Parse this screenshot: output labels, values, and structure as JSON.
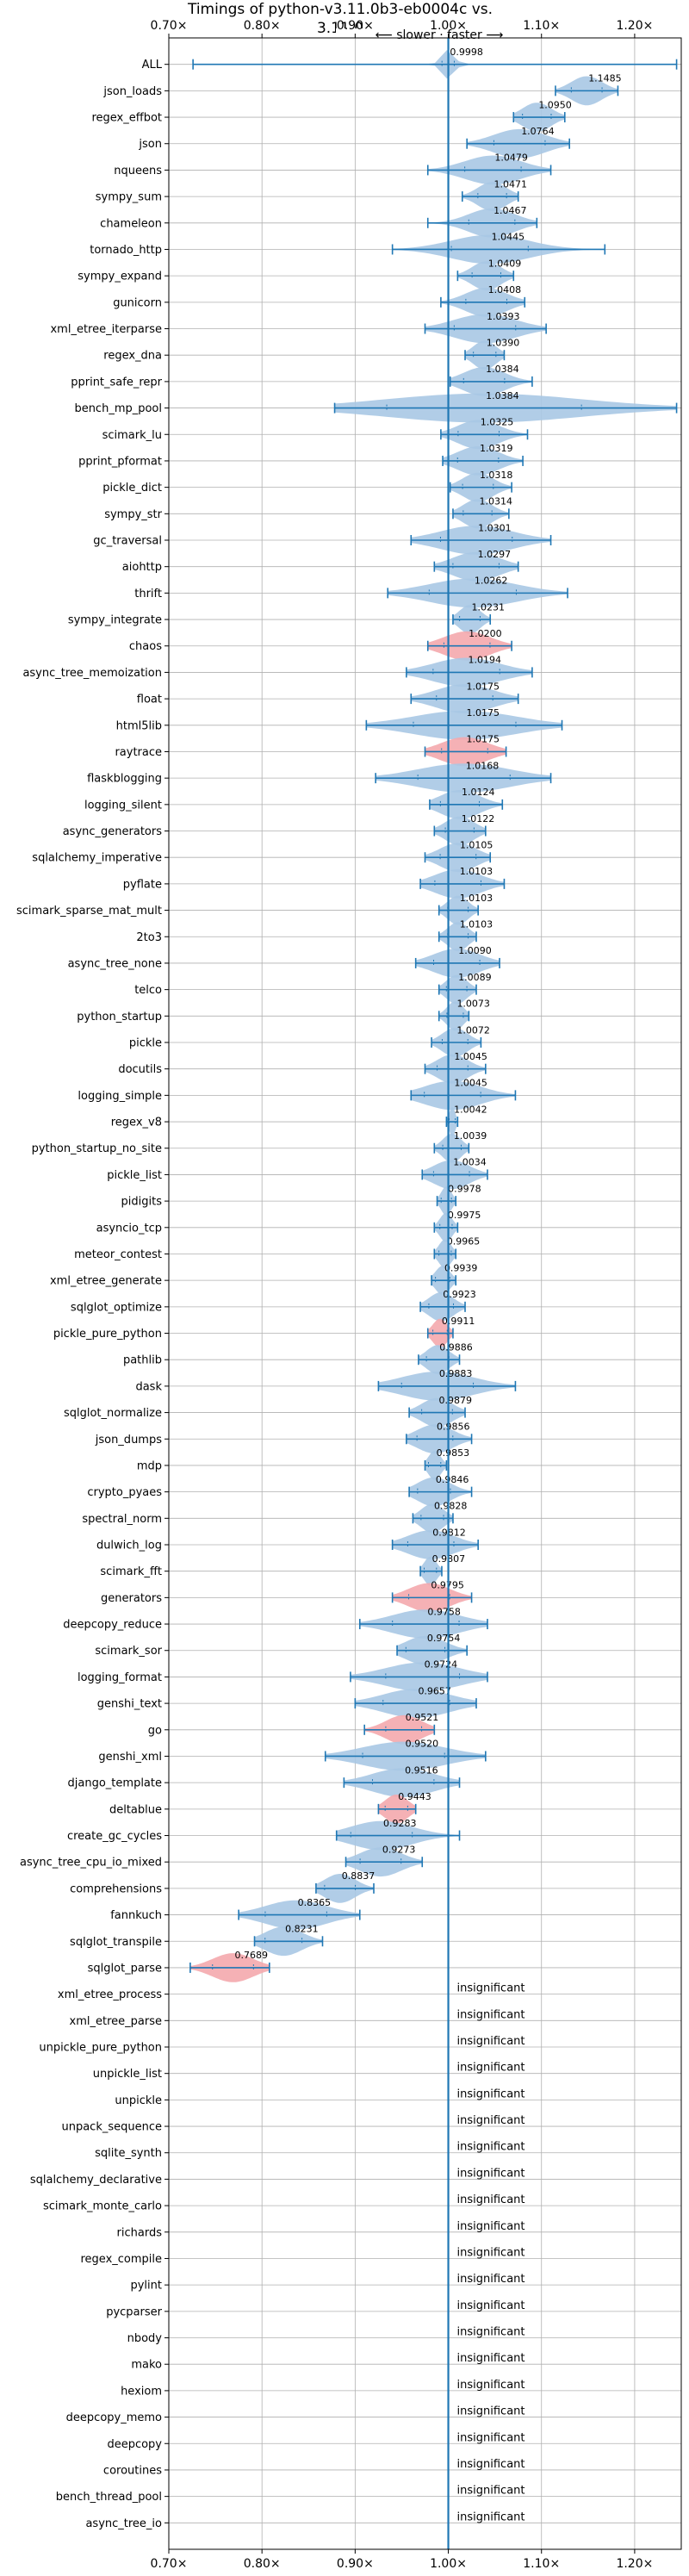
{
  "chart_data": {
    "type": "violin",
    "title": "Timings of python-v3.11.0b3-eb0004c vs. 3.11.0",
    "subtitle": "⟵ slower · faster ⟶",
    "xlim": [
      0.7,
      1.25
    ],
    "xticks": [
      0.7,
      0.8,
      0.9,
      1.0,
      1.1,
      1.2
    ],
    "xtick_labels": [
      "0.70×",
      "0.80×",
      "0.90×",
      "1.00×",
      "1.10×",
      "1.20×"
    ],
    "reference_line": 1.0,
    "grid": true,
    "colors": {
      "faster": "#a8c8e4",
      "slower": "#f4a9ad",
      "line": "#1f77b4"
    },
    "insignificant_label": "insignificant",
    "benchmarks": [
      {
        "name": "ALL",
        "value": 0.9998,
        "label": "0.9998",
        "min": 0.726,
        "max": 1.245,
        "spread": 0.012,
        "slower": false
      },
      {
        "name": "json_loads",
        "value": 1.1485,
        "label": "1.1485",
        "min": 1.115,
        "max": 1.182,
        "spread": 0.03,
        "slower": false
      },
      {
        "name": "regex_effbot",
        "value": 1.095,
        "label": "1.0950",
        "min": 1.07,
        "max": 1.125,
        "spread": 0.028,
        "slower": false
      },
      {
        "name": "json",
        "value": 1.0764,
        "label": "1.0764",
        "min": 1.02,
        "max": 1.13,
        "spread": 0.05,
        "slower": false
      },
      {
        "name": "nqueens",
        "value": 1.0479,
        "label": "1.0479",
        "min": 0.978,
        "max": 1.11,
        "spread": 0.055,
        "slower": false
      },
      {
        "name": "sympy_sum",
        "value": 1.0471,
        "label": "1.0471",
        "min": 1.015,
        "max": 1.075,
        "spread": 0.028,
        "slower": false
      },
      {
        "name": "chameleon",
        "value": 1.0467,
        "label": "1.0467",
        "min": 0.978,
        "max": 1.095,
        "spread": 0.045,
        "slower": false
      },
      {
        "name": "tornado_http",
        "value": 1.0445,
        "label": "1.0445",
        "min": 0.94,
        "max": 1.168,
        "spread": 0.075,
        "slower": false
      },
      {
        "name": "sympy_expand",
        "value": 1.0409,
        "label": "1.0409",
        "min": 1.01,
        "max": 1.07,
        "spread": 0.028,
        "slower": false
      },
      {
        "name": "gunicorn",
        "value": 1.0408,
        "label": "1.0408",
        "min": 0.992,
        "max": 1.082,
        "spread": 0.04,
        "slower": false
      },
      {
        "name": "xml_etree_iterparse",
        "value": 1.0393,
        "label": "1.0393",
        "min": 0.975,
        "max": 1.105,
        "spread": 0.06,
        "slower": false
      },
      {
        "name": "regex_dna",
        "value": 1.039,
        "label": "1.0390",
        "min": 1.018,
        "max": 1.06,
        "spread": 0.022,
        "slower": false
      },
      {
        "name": "pprint_safe_repr",
        "value": 1.0384,
        "label": "1.0384",
        "min": 1.002,
        "max": 1.09,
        "spread": 0.04,
        "slower": false
      },
      {
        "name": "bench_mp_pool",
        "value": 1.0384,
        "label": "1.0384",
        "min": 0.878,
        "max": 1.245,
        "spread": 0.19,
        "slower": false
      },
      {
        "name": "scimark_lu",
        "value": 1.0325,
        "label": "1.0325",
        "min": 0.992,
        "max": 1.085,
        "spread": 0.04,
        "slower": false
      },
      {
        "name": "pprint_pformat",
        "value": 1.0319,
        "label": "1.0319",
        "min": 0.994,
        "max": 1.08,
        "spread": 0.04,
        "slower": false
      },
      {
        "name": "pickle_dict",
        "value": 1.0318,
        "label": "1.0318",
        "min": 1.002,
        "max": 1.068,
        "spread": 0.03,
        "slower": false
      },
      {
        "name": "sympy_str",
        "value": 1.0314,
        "label": "1.0314",
        "min": 1.005,
        "max": 1.065,
        "spread": 0.028,
        "slower": false
      },
      {
        "name": "gc_traversal",
        "value": 1.0301,
        "label": "1.0301",
        "min": 0.96,
        "max": 1.11,
        "spread": 0.07,
        "slower": false
      },
      {
        "name": "aiohttp",
        "value": 1.0297,
        "label": "1.0297",
        "min": 0.985,
        "max": 1.075,
        "spread": 0.045,
        "slower": false
      },
      {
        "name": "thrift",
        "value": 1.0262,
        "label": "1.0262",
        "min": 0.935,
        "max": 1.128,
        "spread": 0.085,
        "slower": false
      },
      {
        "name": "sympy_integrate",
        "value": 1.0231,
        "label": "1.0231",
        "min": 1.005,
        "max": 1.045,
        "spread": 0.02,
        "slower": false
      },
      {
        "name": "chaos",
        "value": 1.02,
        "label": "1.0200",
        "min": 0.978,
        "max": 1.068,
        "spread": 0.045,
        "slower": true
      },
      {
        "name": "async_tree_memoization",
        "value": 1.0194,
        "label": "1.0194",
        "min": 0.955,
        "max": 1.09,
        "spread": 0.065,
        "slower": false
      },
      {
        "name": "float",
        "value": 1.0175,
        "label": "1.0175",
        "min": 0.96,
        "max": 1.075,
        "spread": 0.055,
        "slower": false
      },
      {
        "name": "html5lib",
        "value": 1.0175,
        "label": "1.0175",
        "min": 0.912,
        "max": 1.122,
        "spread": 0.1,
        "slower": false
      },
      {
        "name": "raytrace",
        "value": 1.0175,
        "label": "1.0175",
        "min": 0.975,
        "max": 1.062,
        "spread": 0.045,
        "slower": true
      },
      {
        "name": "flaskblogging",
        "value": 1.0168,
        "label": "1.0168",
        "min": 0.922,
        "max": 1.11,
        "spread": 0.09,
        "slower": false
      },
      {
        "name": "logging_silent",
        "value": 1.0124,
        "label": "1.0124",
        "min": 0.98,
        "max": 1.058,
        "spread": 0.038,
        "slower": false
      },
      {
        "name": "async_generators",
        "value": 1.0122,
        "label": "1.0122",
        "min": 0.985,
        "max": 1.04,
        "spread": 0.028,
        "slower": false
      },
      {
        "name": "sqlalchemy_imperative",
        "value": 1.0105,
        "label": "1.0105",
        "min": 0.975,
        "max": 1.045,
        "spread": 0.035,
        "slower": false
      },
      {
        "name": "pyflate",
        "value": 1.0103,
        "label": "1.0103",
        "min": 0.97,
        "max": 1.06,
        "spread": 0.045,
        "slower": false
      },
      {
        "name": "scimark_sparse_mat_mult",
        "value": 1.0103,
        "label": "1.0103",
        "min": 0.99,
        "max": 1.032,
        "spread": 0.02,
        "slower": false
      },
      {
        "name": "2to3",
        "value": 1.0103,
        "label": "1.0103",
        "min": 0.99,
        "max": 1.03,
        "spread": 0.02,
        "slower": false
      },
      {
        "name": "async_tree_none",
        "value": 1.009,
        "label": "1.0090",
        "min": 0.965,
        "max": 1.055,
        "spread": 0.045,
        "slower": false
      },
      {
        "name": "telco",
        "value": 1.0089,
        "label": "1.0089",
        "min": 0.99,
        "max": 1.03,
        "spread": 0.02,
        "slower": false
      },
      {
        "name": "python_startup",
        "value": 1.0073,
        "label": "1.0073",
        "min": 0.99,
        "max": 1.022,
        "spread": 0.016,
        "slower": false
      },
      {
        "name": "pickle",
        "value": 1.0072,
        "label": "1.0072",
        "min": 0.982,
        "max": 1.035,
        "spread": 0.025,
        "slower": false
      },
      {
        "name": "docutils",
        "value": 1.0045,
        "label": "1.0045",
        "min": 0.975,
        "max": 1.04,
        "spread": 0.03,
        "slower": false
      },
      {
        "name": "logging_simple",
        "value": 1.0045,
        "label": "1.0045",
        "min": 0.96,
        "max": 1.072,
        "spread": 0.055,
        "slower": false
      },
      {
        "name": "regex_v8",
        "value": 1.0042,
        "label": "1.0042",
        "min": 0.998,
        "max": 1.01,
        "spread": 0.006,
        "slower": false
      },
      {
        "name": "python_startup_no_site",
        "value": 1.0039,
        "label": "1.0039",
        "min": 0.985,
        "max": 1.022,
        "spread": 0.018,
        "slower": false
      },
      {
        "name": "pickle_list",
        "value": 1.0034,
        "label": "1.0034",
        "min": 0.972,
        "max": 1.042,
        "spread": 0.035,
        "slower": false
      },
      {
        "name": "pidigits",
        "value": 0.9978,
        "label": "0.9978",
        "min": 0.988,
        "max": 1.008,
        "spread": 0.01,
        "slower": false
      },
      {
        "name": "asyncio_tcp",
        "value": 0.9975,
        "label": "0.9975",
        "min": 0.985,
        "max": 1.01,
        "spread": 0.012,
        "slower": false
      },
      {
        "name": "meteor_contest",
        "value": 0.9965,
        "label": "0.9965",
        "min": 0.985,
        "max": 1.008,
        "spread": 0.012,
        "slower": false
      },
      {
        "name": "xml_etree_generate",
        "value": 0.9939,
        "label": "0.9939",
        "min": 0.982,
        "max": 1.008,
        "spread": 0.014,
        "slower": false
      },
      {
        "name": "sqlglot_optimize",
        "value": 0.9923,
        "label": "0.9923",
        "min": 0.97,
        "max": 1.018,
        "spread": 0.024,
        "slower": false
      },
      {
        "name": "pickle_pure_python",
        "value": 0.9911,
        "label": "0.9911",
        "min": 0.978,
        "max": 1.005,
        "spread": 0.014,
        "slower": true
      },
      {
        "name": "pathlib",
        "value": 0.9886,
        "label": "0.9886",
        "min": 0.968,
        "max": 1.012,
        "spread": 0.022,
        "slower": false
      },
      {
        "name": "dask",
        "value": 0.9883,
        "label": "0.9883",
        "min": 0.925,
        "max": 1.072,
        "spread": 0.07,
        "slower": false
      },
      {
        "name": "sqlglot_normalize",
        "value": 0.9879,
        "label": "0.9879",
        "min": 0.958,
        "max": 1.018,
        "spread": 0.03,
        "slower": false
      },
      {
        "name": "json_dumps",
        "value": 0.9856,
        "label": "0.9856",
        "min": 0.955,
        "max": 1.025,
        "spread": 0.035,
        "slower": false
      },
      {
        "name": "mdp",
        "value": 0.9853,
        "label": "0.9853",
        "min": 0.975,
        "max": 0.998,
        "spread": 0.012,
        "slower": false
      },
      {
        "name": "crypto_pyaes",
        "value": 0.9846,
        "label": "0.9846",
        "min": 0.958,
        "max": 1.025,
        "spread": 0.032,
        "slower": false
      },
      {
        "name": "spectral_norm",
        "value": 0.9828,
        "label": "0.9828",
        "min": 0.962,
        "max": 1.005,
        "spread": 0.022,
        "slower": false
      },
      {
        "name": "dulwich_log",
        "value": 0.9812,
        "label": "0.9812",
        "min": 0.94,
        "max": 1.032,
        "spread": 0.045,
        "slower": false
      },
      {
        "name": "scimark_fft",
        "value": 0.9807,
        "label": "0.9807",
        "min": 0.97,
        "max": 0.993,
        "spread": 0.012,
        "slower": false
      },
      {
        "name": "generators",
        "value": 0.9795,
        "label": "0.9795",
        "min": 0.94,
        "max": 1.025,
        "spread": 0.04,
        "slower": true
      },
      {
        "name": "deepcopy_reduce",
        "value": 0.9758,
        "label": "0.9758",
        "min": 0.905,
        "max": 1.042,
        "spread": 0.065,
        "slower": false
      },
      {
        "name": "scimark_sor",
        "value": 0.9754,
        "label": "0.9754",
        "min": 0.945,
        "max": 1.02,
        "spread": 0.038,
        "slower": false
      },
      {
        "name": "logging_format",
        "value": 0.9724,
        "label": "0.9724",
        "min": 0.895,
        "max": 1.042,
        "spread": 0.072,
        "slower": false
      },
      {
        "name": "genshi_text",
        "value": 0.9657,
        "label": "0.9657",
        "min": 0.9,
        "max": 1.03,
        "spread": 0.065,
        "slower": false
      },
      {
        "name": "go",
        "value": 0.9521,
        "label": "0.9521",
        "min": 0.91,
        "max": 0.985,
        "spread": 0.035,
        "slower": true
      },
      {
        "name": "genshi_xml",
        "value": 0.952,
        "label": "0.9520",
        "min": 0.868,
        "max": 1.04,
        "spread": 0.08,
        "slower": false
      },
      {
        "name": "django_template",
        "value": 0.9516,
        "label": "0.9516",
        "min": 0.888,
        "max": 1.012,
        "spread": 0.06,
        "slower": false
      },
      {
        "name": "deltablue",
        "value": 0.9443,
        "label": "0.9443",
        "min": 0.925,
        "max": 0.965,
        "spread": 0.022,
        "slower": true
      },
      {
        "name": "create_gc_cycles",
        "value": 0.9283,
        "label": "0.9283",
        "min": 0.88,
        "max": 1.012,
        "spread": 0.06,
        "slower": false
      },
      {
        "name": "async_tree_cpu_io_mixed",
        "value": 0.9273,
        "label": "0.9273",
        "min": 0.89,
        "max": 0.972,
        "spread": 0.04,
        "slower": false
      },
      {
        "name": "comprehensions",
        "value": 0.8837,
        "label": "0.8837",
        "min": 0.858,
        "max": 0.92,
        "spread": 0.03,
        "slower": false
      },
      {
        "name": "fannkuch",
        "value": 0.8365,
        "label": "0.8365",
        "min": 0.775,
        "max": 0.905,
        "spread": 0.06,
        "slower": false
      },
      {
        "name": "sqlglot_transpile",
        "value": 0.8231,
        "label": "0.8231",
        "min": 0.792,
        "max": 0.865,
        "spread": 0.036,
        "slower": false
      },
      {
        "name": "sqlglot_parse",
        "value": 0.7689,
        "label": "0.7689",
        "min": 0.723,
        "max": 0.808,
        "spread": 0.04,
        "slower": true
      },
      {
        "name": "xml_etree_process",
        "insignificant": true
      },
      {
        "name": "xml_etree_parse",
        "insignificant": true
      },
      {
        "name": "unpickle_pure_python",
        "insignificant": true
      },
      {
        "name": "unpickle_list",
        "insignificant": true
      },
      {
        "name": "unpickle",
        "insignificant": true
      },
      {
        "name": "unpack_sequence",
        "insignificant": true
      },
      {
        "name": "sqlite_synth",
        "insignificant": true
      },
      {
        "name": "sqlalchemy_declarative",
        "insignificant": true
      },
      {
        "name": "scimark_monte_carlo",
        "insignificant": true
      },
      {
        "name": "richards",
        "insignificant": true
      },
      {
        "name": "regex_compile",
        "insignificant": true
      },
      {
        "name": "pylint",
        "insignificant": true
      },
      {
        "name": "pycparser",
        "insignificant": true
      },
      {
        "name": "nbody",
        "insignificant": true
      },
      {
        "name": "mako",
        "insignificant": true
      },
      {
        "name": "hexiom",
        "insignificant": true
      },
      {
        "name": "deepcopy_memo",
        "insignificant": true
      },
      {
        "name": "deepcopy",
        "insignificant": true
      },
      {
        "name": "coroutines",
        "insignificant": true
      },
      {
        "name": "bench_thread_pool",
        "insignificant": true
      },
      {
        "name": "async_tree_io",
        "insignificant": true
      }
    ]
  }
}
